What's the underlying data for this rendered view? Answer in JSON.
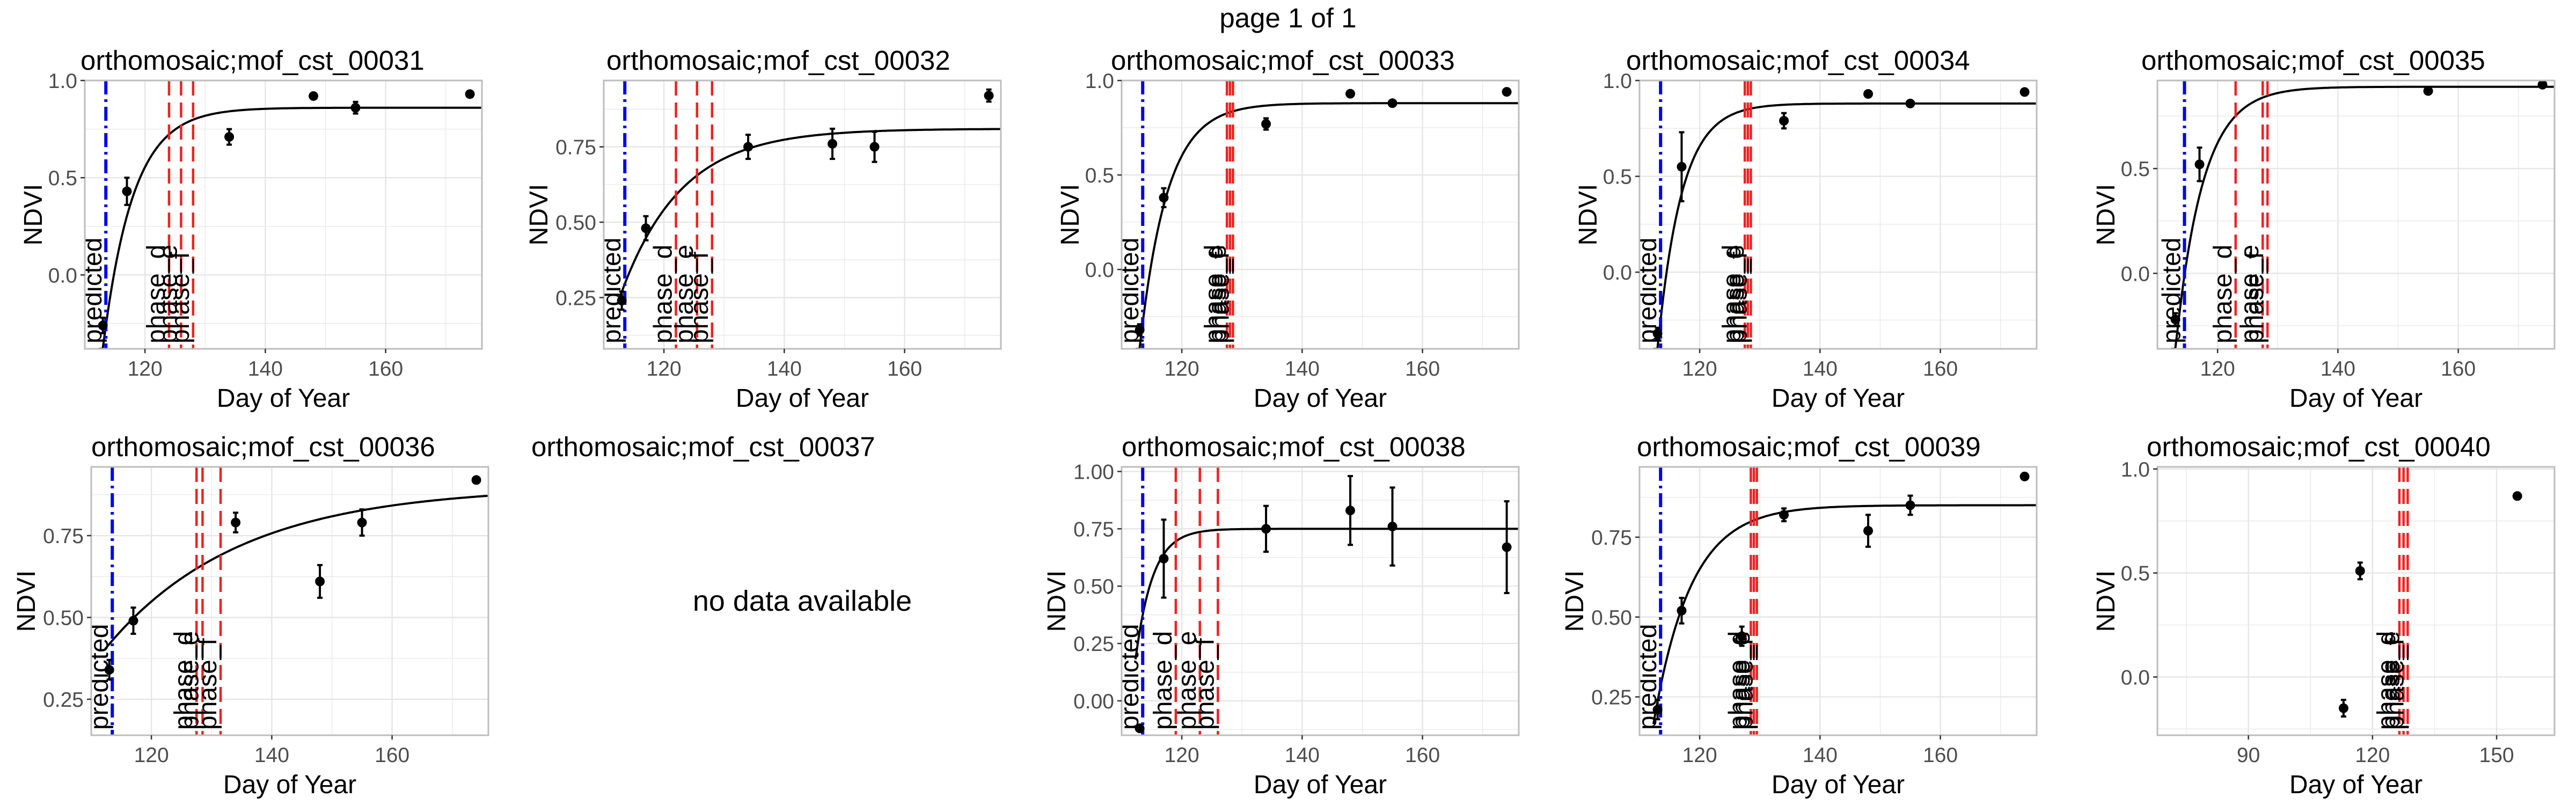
{
  "page": {
    "title": "page 1 of 1"
  },
  "colors": {
    "predicted": "#0000ee",
    "phase": "#ee2222",
    "fit": "#000000",
    "points": "#000000",
    "grid": "#e6e6e6",
    "panel_border": "#bdbdbd"
  },
  "chart_data": [
    {
      "type": "scatter",
      "title": "orthomosaic;mof_cst_00031",
      "xlabel": "Day of Year",
      "ylabel": "NDVI",
      "xlim": [
        110,
        176
      ],
      "ylim": [
        -0.38,
        1.0
      ],
      "xticks": [
        120,
        140,
        160
      ],
      "yticks": [
        0.0,
        0.5,
        1.0
      ],
      "ytick_labels": [
        "0.0",
        "0.5",
        "1.0"
      ],
      "points": [
        {
          "x": 113,
          "y": -0.26,
          "err": 0.04
        },
        {
          "x": 117,
          "y": 0.43,
          "err": 0.07
        },
        {
          "x": 134,
          "y": 0.71,
          "err": 0.04
        },
        {
          "x": 148,
          "y": 0.92,
          "err": 0.0
        },
        {
          "x": 155,
          "y": 0.86,
          "err": 0.03
        },
        {
          "x": 174,
          "y": 0.93,
          "err": 0.0
        }
      ],
      "fit": {
        "y0": -0.38,
        "ymax": 0.86,
        "x0": 113,
        "k": 0.2
      },
      "vlines": [
        {
          "x": 113.5,
          "label": "predicted",
          "kind": "predicted"
        },
        {
          "x": 124,
          "label": "phase_d",
          "kind": "phase"
        },
        {
          "x": 126,
          "label": "phase_e",
          "kind": "phase"
        },
        {
          "x": 128,
          "label": "phase_f",
          "kind": "phase"
        }
      ]
    },
    {
      "type": "scatter",
      "title": "orthomosaic;mof_cst_00032",
      "xlabel": "Day of Year",
      "ylabel": "NDVI",
      "xlim": [
        110,
        176
      ],
      "ylim": [
        0.08,
        0.97
      ],
      "xticks": [
        120,
        140,
        160
      ],
      "yticks": [
        0.25,
        0.5,
        0.75
      ],
      "ytick_labels": [
        "0.25",
        "0.50",
        "0.75"
      ],
      "points": [
        {
          "x": 113,
          "y": 0.24,
          "err": 0.03
        },
        {
          "x": 117,
          "y": 0.48,
          "err": 0.04
        },
        {
          "x": 134,
          "y": 0.75,
          "err": 0.04
        },
        {
          "x": 148,
          "y": 0.76,
          "err": 0.05
        },
        {
          "x": 155,
          "y": 0.75,
          "err": 0.05
        },
        {
          "x": 174,
          "y": 0.92,
          "err": 0.02
        }
      ],
      "fit": {
        "y0": 0.08,
        "ymax": 0.81,
        "x0": 110,
        "k": 0.1
      },
      "vlines": [
        {
          "x": 113.5,
          "label": "predicted",
          "kind": "predicted"
        },
        {
          "x": 122,
          "label": "phase_d",
          "kind": "phase"
        },
        {
          "x": 125.5,
          "label": "phase_e",
          "kind": "phase"
        },
        {
          "x": 128,
          "label": "phase_f",
          "kind": "phase"
        }
      ]
    },
    {
      "type": "scatter",
      "title": "orthomosaic;mof_cst_00033",
      "xlabel": "Day of Year",
      "ylabel": "NDVI",
      "xlim": [
        110,
        176
      ],
      "ylim": [
        -0.42,
        1.0
      ],
      "xticks": [
        120,
        140,
        160
      ],
      "yticks": [
        0.0,
        0.5,
        1.0
      ],
      "ytick_labels": [
        "0.0",
        "0.5",
        "1.0"
      ],
      "points": [
        {
          "x": 113,
          "y": -0.32,
          "err": 0.03
        },
        {
          "x": 117,
          "y": 0.38,
          "err": 0.05
        },
        {
          "x": 134,
          "y": 0.77,
          "err": 0.03
        },
        {
          "x": 148,
          "y": 0.93,
          "err": 0.0
        },
        {
          "x": 155,
          "y": 0.88,
          "err": 0.0
        },
        {
          "x": 174,
          "y": 0.94,
          "err": 0.0
        }
      ],
      "fit": {
        "y0": -0.42,
        "ymax": 0.88,
        "x0": 113,
        "k": 0.22
      },
      "vlines": [
        {
          "x": 113.5,
          "label": "predicted",
          "kind": "predicted"
        },
        {
          "x": 127.5,
          "label": "phase_d",
          "kind": "phase"
        },
        {
          "x": 128,
          "label": "phase_e",
          "kind": "phase"
        },
        {
          "x": 128.5,
          "label": "phase_f",
          "kind": "phase"
        }
      ]
    },
    {
      "type": "scatter",
      "title": "orthomosaic;mof_cst_00034",
      "xlabel": "Day of Year",
      "ylabel": "NDVI",
      "xlim": [
        110,
        176
      ],
      "ylim": [
        -0.4,
        1.0
      ],
      "xticks": [
        120,
        140,
        160
      ],
      "yticks": [
        0.0,
        0.5,
        1.0
      ],
      "ytick_labels": [
        "0.0",
        "0.5",
        "1.0"
      ],
      "points": [
        {
          "x": 113,
          "y": -0.32,
          "err": 0.03
        },
        {
          "x": 117,
          "y": 0.55,
          "err": 0.18
        },
        {
          "x": 134,
          "y": 0.79,
          "err": 0.04
        },
        {
          "x": 148,
          "y": 0.93,
          "err": 0.0
        },
        {
          "x": 155,
          "y": 0.88,
          "err": 0.0
        },
        {
          "x": 174,
          "y": 0.94,
          "err": 0.0
        }
      ],
      "fit": {
        "y0": -0.4,
        "ymax": 0.88,
        "x0": 113,
        "k": 0.25
      },
      "vlines": [
        {
          "x": 113.5,
          "label": "predicted",
          "kind": "predicted"
        },
        {
          "x": 127.5,
          "label": "phase_d",
          "kind": "phase"
        },
        {
          "x": 128,
          "label": "phase_e",
          "kind": "phase"
        },
        {
          "x": 128.5,
          "label": "phase_f",
          "kind": "phase"
        }
      ]
    },
    {
      "type": "scatter",
      "title": "orthomosaic;mof_cst_00035",
      "xlabel": "Day of Year",
      "ylabel": "NDVI",
      "xlim": [
        110,
        176
      ],
      "ylim": [
        -0.36,
        0.92
      ],
      "xticks": [
        120,
        140,
        160
      ],
      "yticks": [
        0.0,
        0.5
      ],
      "ytick_labels": [
        "0.0",
        "0.5"
      ],
      "points": [
        {
          "x": 113,
          "y": -0.22,
          "err": 0.03
        },
        {
          "x": 117,
          "y": 0.52,
          "err": 0.08
        },
        {
          "x": 155,
          "y": 0.87,
          "err": 0.0
        },
        {
          "x": 174,
          "y": 0.9,
          "err": 0.0
        }
      ],
      "fit": {
        "y0": -0.36,
        "ymax": 0.89,
        "x0": 113,
        "k": 0.22
      },
      "vlines": [
        {
          "x": 114.5,
          "label": "predicted",
          "kind": "predicted"
        },
        {
          "x": 123,
          "label": "phase_d",
          "kind": "phase"
        },
        {
          "x": 127.5,
          "label": "phase_e",
          "kind": "phase"
        },
        {
          "x": 128.3,
          "label": "phase_f",
          "kind": "phase"
        }
      ]
    },
    {
      "type": "scatter",
      "title": "orthomosaic;mof_cst_00036",
      "xlabel": "Day of Year",
      "ylabel": "NDVI",
      "xlim": [
        110,
        176
      ],
      "ylim": [
        0.14,
        0.96
      ],
      "xticks": [
        120,
        140,
        160
      ],
      "yticks": [
        0.25,
        0.5,
        0.75
      ],
      "ytick_labels": [
        "0.25",
        "0.50",
        "0.75"
      ],
      "points": [
        {
          "x": 113,
          "y": 0.34,
          "err": 0.03
        },
        {
          "x": 117,
          "y": 0.49,
          "err": 0.04
        },
        {
          "x": 134,
          "y": 0.79,
          "err": 0.03
        },
        {
          "x": 148,
          "y": 0.61,
          "err": 0.05
        },
        {
          "x": 155,
          "y": 0.79,
          "err": 0.04
        },
        {
          "x": 174,
          "y": 0.92,
          "err": 0.0
        }
      ],
      "fit": {
        "y0": 0.21,
        "ymax": 0.9,
        "x0": 105,
        "k": 0.045
      },
      "vlines": [
        {
          "x": 113.5,
          "label": "predicted",
          "kind": "predicted"
        },
        {
          "x": 127.5,
          "label": "phase_d",
          "kind": "phase"
        },
        {
          "x": 128.5,
          "label": "phase_e",
          "kind": "phase"
        },
        {
          "x": 131.5,
          "label": "phase_f",
          "kind": "phase"
        }
      ]
    },
    {
      "type": "scatter",
      "title": "orthomosaic;mof_cst_00037",
      "message": "no data available"
    },
    {
      "type": "scatter",
      "title": "orthomosaic;mof_cst_00038",
      "xlabel": "Day of Year",
      "ylabel": "NDVI",
      "xlim": [
        110,
        176
      ],
      "ylim": [
        -0.15,
        1.02
      ],
      "xticks": [
        120,
        140,
        160
      ],
      "yticks": [
        0.0,
        0.25,
        0.5,
        0.75,
        1.0
      ],
      "ytick_labels": [
        "0.00",
        "0.25",
        "0.50",
        "0.75",
        "1.00"
      ],
      "points": [
        {
          "x": 113,
          "y": -0.12,
          "err": 0.0
        },
        {
          "x": 117,
          "y": 0.62,
          "err": 0.17
        },
        {
          "x": 134,
          "y": 0.75,
          "err": 0.1
        },
        {
          "x": 148,
          "y": 0.83,
          "err": 0.15
        },
        {
          "x": 155,
          "y": 0.76,
          "err": 0.17
        },
        {
          "x": 174,
          "y": 0.67,
          "err": 0.2
        }
      ],
      "fit": {
        "y0": -0.15,
        "ymax": 0.75,
        "x0": 111,
        "k": 0.35
      },
      "vlines": [
        {
          "x": 113.5,
          "label": "predicted",
          "kind": "predicted"
        },
        {
          "x": 119,
          "label": "phase_d",
          "kind": "phase"
        },
        {
          "x": 123,
          "label": "phase_e",
          "kind": "phase"
        },
        {
          "x": 126,
          "label": "phase_f",
          "kind": "phase"
        }
      ]
    },
    {
      "type": "scatter",
      "title": "orthomosaic;mof_cst_00039",
      "xlabel": "Day of Year",
      "ylabel": "NDVI",
      "xlim": [
        110,
        176
      ],
      "ylim": [
        0.13,
        0.97
      ],
      "xticks": [
        120,
        140,
        160
      ],
      "yticks": [
        0.25,
        0.5,
        0.75
      ],
      "ytick_labels": [
        "0.25",
        "0.50",
        "0.75"
      ],
      "points": [
        {
          "x": 113,
          "y": 0.21,
          "err": 0.03
        },
        {
          "x": 117,
          "y": 0.52,
          "err": 0.04
        },
        {
          "x": 127,
          "y": 0.44,
          "err": 0.03
        },
        {
          "x": 134,
          "y": 0.82,
          "err": 0.02
        },
        {
          "x": 148,
          "y": 0.77,
          "err": 0.05
        },
        {
          "x": 155,
          "y": 0.85,
          "err": 0.03
        },
        {
          "x": 174,
          "y": 0.94,
          "err": 0.0
        }
      ],
      "fit": {
        "y0": 0.13,
        "ymax": 0.85,
        "x0": 112,
        "k": 0.16
      },
      "vlines": [
        {
          "x": 113.5,
          "label": "predicted",
          "kind": "predicted"
        },
        {
          "x": 128.5,
          "label": "phase_d",
          "kind": "phase"
        },
        {
          "x": 129,
          "label": "phase_e",
          "kind": "phase"
        },
        {
          "x": 129.5,
          "label": "phase_f",
          "kind": "phase"
        }
      ]
    },
    {
      "type": "scatter",
      "title": "orthomosaic;mof_cst_00040",
      "xlabel": "Day of Year",
      "ylabel": "NDVI",
      "xlim": [
        68,
        164
      ],
      "ylim": [
        -0.28,
        1.01
      ],
      "xticks": [
        90,
        120,
        150
      ],
      "yticks": [
        0.0,
        0.5,
        1.0
      ],
      "ytick_labels": [
        "0.0",
        "0.5",
        "1.0"
      ],
      "points": [
        {
          "x": 113,
          "y": -0.15,
          "err": 0.04
        },
        {
          "x": 117,
          "y": 0.51,
          "err": 0.04
        },
        {
          "x": 155,
          "y": 0.87,
          "err": 0.0
        }
      ],
      "vlines": [
        {
          "x": 126.5,
          "label": "phase_d",
          "kind": "phase"
        },
        {
          "x": 127.5,
          "label": "phase_e",
          "kind": "phase"
        },
        {
          "x": 128.5,
          "label": "phase_f",
          "kind": "phase"
        }
      ]
    }
  ]
}
